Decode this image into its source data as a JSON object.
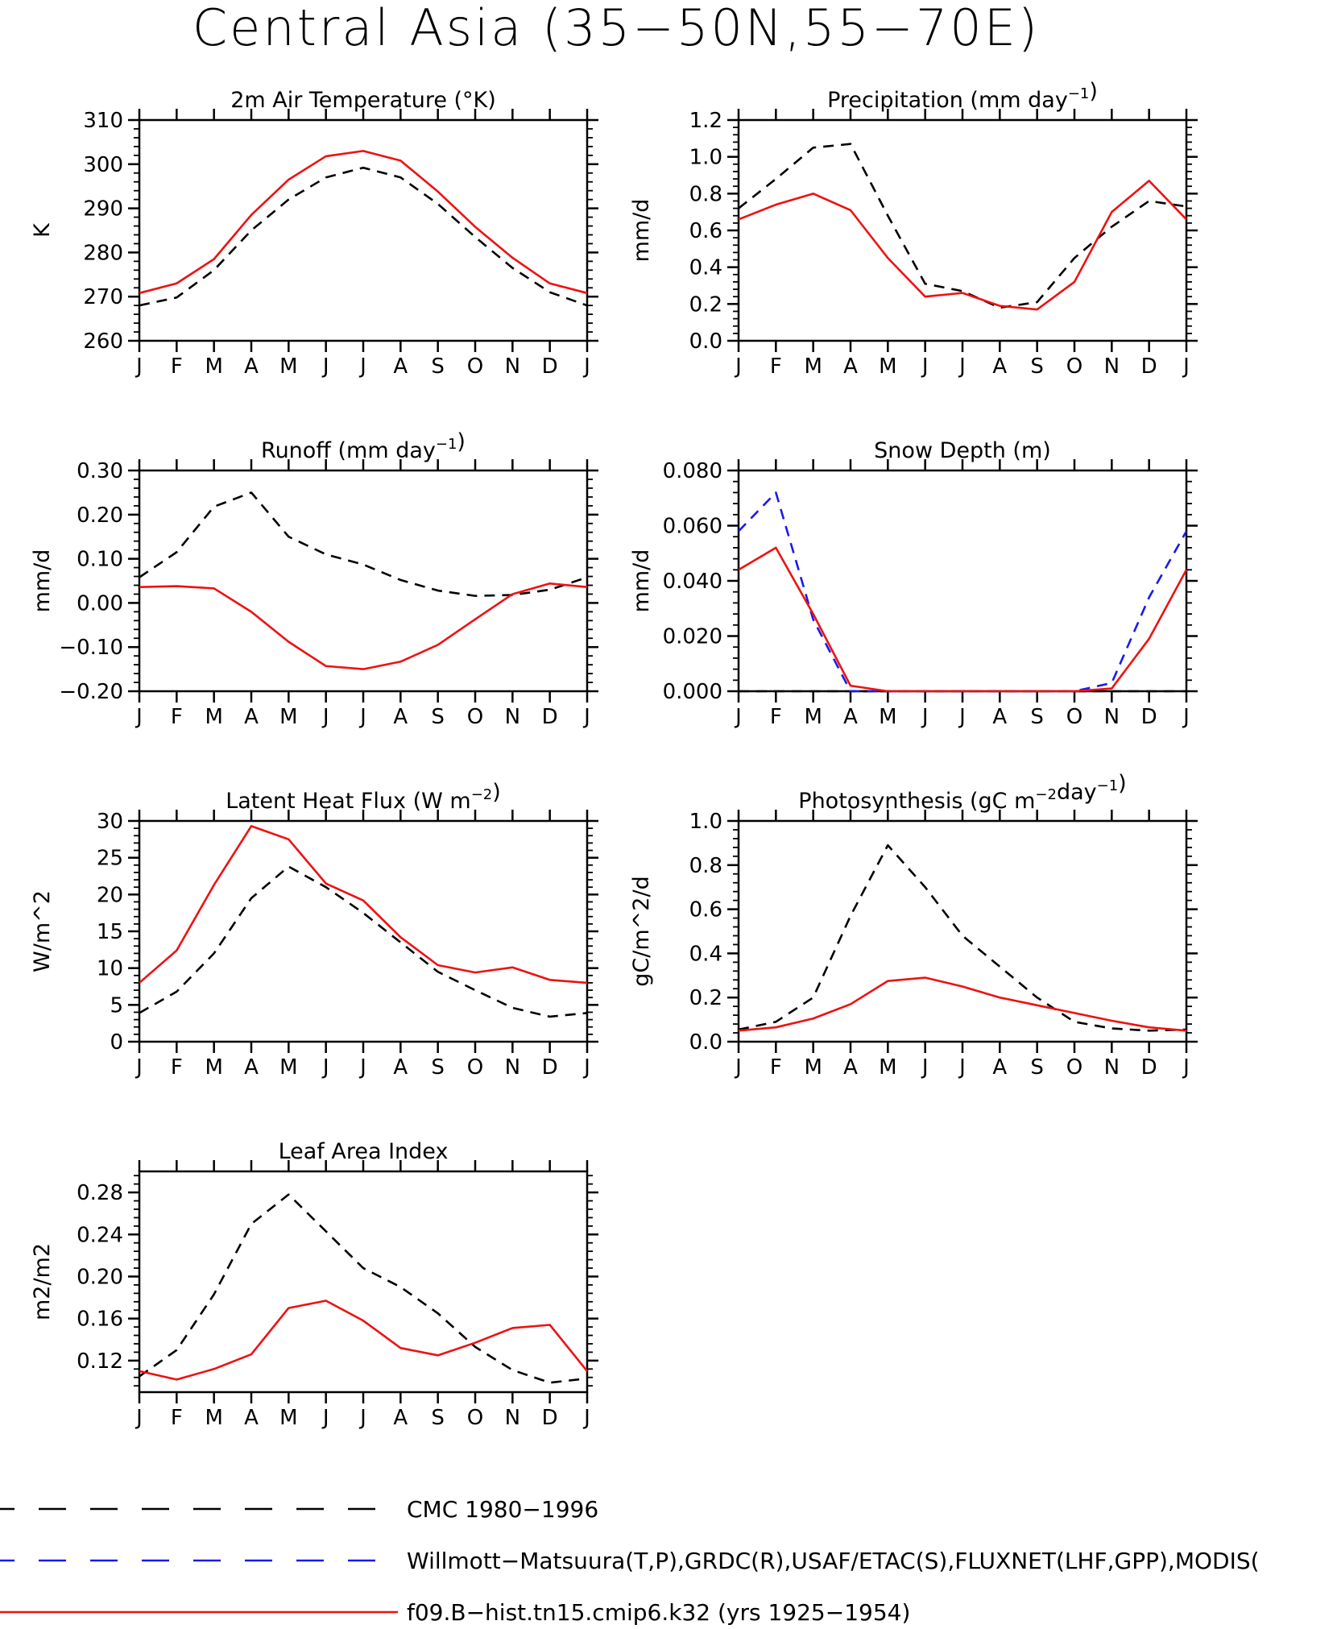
{
  "page_title": "Central Asia (35−50N,55−70E)",
  "chart_data": [
    {
      "id": "temperature",
      "type": "line",
      "title": "2m Air Temperature (°K)",
      "ylabel": "K",
      "x": [
        "J",
        "F",
        "M",
        "A",
        "M",
        "J",
        "J",
        "A",
        "S",
        "O",
        "N",
        "D",
        "J"
      ],
      "ylim": [
        260,
        310
      ],
      "yticks": [
        "260",
        "270",
        "280",
        "290",
        "300",
        "310"
      ],
      "series": [
        {
          "ref": "CMC 1980−1996",
          "values": [
            268.0,
            269.8,
            276.0,
            285.0,
            292.0,
            297.0,
            299.2,
            297.0,
            291.0,
            283.5,
            276.5,
            271.0,
            268.0
          ]
        },
        {
          "ref": "f09.B−hist.tn15.cmip6.k32 (yrs 1925−1954)",
          "values": [
            270.8,
            273.0,
            278.5,
            288.5,
            296.5,
            301.8,
            303.0,
            300.8,
            293.8,
            285.8,
            278.8,
            273.0,
            270.8
          ]
        }
      ]
    },
    {
      "id": "precipitation",
      "type": "line",
      "title": "Precipitation (mm day",
      "title_sup": "−1",
      "title_end": ")",
      "ylabel": "mm/d",
      "x": [
        "J",
        "F",
        "M",
        "A",
        "M",
        "J",
        "J",
        "A",
        "S",
        "O",
        "N",
        "D",
        "J"
      ],
      "ylim": [
        0,
        1.2
      ],
      "yticks": [
        "0.0",
        "0.2",
        "0.4",
        "0.6",
        "0.8",
        "1.0",
        "1.2"
      ],
      "series": [
        {
          "ref": "CMC 1980−1996",
          "values": [
            0.72,
            0.88,
            1.05,
            1.07,
            0.68,
            0.31,
            0.27,
            0.18,
            0.21,
            0.45,
            0.62,
            0.76,
            0.73
          ]
        },
        {
          "ref": "f09.B−hist.tn15.cmip6.k32 (yrs 1925−1954)",
          "values": [
            0.66,
            0.74,
            0.8,
            0.71,
            0.45,
            0.24,
            0.26,
            0.19,
            0.17,
            0.32,
            0.7,
            0.87,
            0.66
          ]
        }
      ]
    },
    {
      "id": "runoff",
      "type": "line",
      "title": "Runoff (mm day",
      "title_sup": "−1",
      "title_end": ")",
      "ylabel": "mm/d",
      "x": [
        "J",
        "F",
        "M",
        "A",
        "M",
        "J",
        "J",
        "A",
        "S",
        "O",
        "N",
        "D",
        "J"
      ],
      "ylim": [
        -0.2,
        0.3
      ],
      "yticks": [
        "−0.20",
        "−0.10",
        "0.00",
        "0.10",
        "0.20",
        "0.30"
      ],
      "series": [
        {
          "ref": "CMC 1980−1996",
          "values": [
            0.058,
            0.115,
            0.218,
            0.25,
            0.15,
            0.11,
            0.087,
            0.052,
            0.028,
            0.016,
            0.018,
            0.03,
            0.058
          ]
        },
        {
          "ref": "f09.B−hist.tn15.cmip6.k32 (yrs 1925−1954)",
          "values": [
            0.036,
            0.038,
            0.033,
            -0.02,
            -0.088,
            -0.143,
            -0.15,
            -0.133,
            -0.095,
            -0.037,
            0.02,
            0.044,
            0.036
          ]
        }
      ]
    },
    {
      "id": "snow-depth",
      "type": "line",
      "title": "Snow Depth (m)",
      "ylabel": "mm/d",
      "x": [
        "J",
        "F",
        "M",
        "A",
        "M",
        "J",
        "J",
        "A",
        "S",
        "O",
        "N",
        "D",
        "J"
      ],
      "ylim": [
        0,
        0.08
      ],
      "yticks": [
        "0.000",
        "0.020",
        "0.040",
        "0.060",
        "0.080"
      ],
      "series": [
        {
          "ref": "CMC 1980−1996",
          "values": [
            0,
            0,
            0,
            0,
            0,
            0,
            0,
            0,
            0,
            0,
            0,
            0,
            0
          ]
        },
        {
          "ref": "Willmott−Matsuura(T,P),GRDC(R),USAF/ETAC(S),FLUXNET(LHF,GPP),MODIS(",
          "values": [
            0.058,
            0.072,
            0.026,
            0.0,
            0.0,
            0.0,
            0.0,
            0.0,
            0.0,
            0.0,
            0.003,
            0.034,
            0.058
          ]
        },
        {
          "ref": "f09.B−hist.tn15.cmip6.k32 (yrs 1925−1954)",
          "values": [
            0.044,
            0.052,
            0.028,
            0.002,
            0.0,
            0.0,
            0.0,
            0.0,
            0.0,
            0.0,
            0.001,
            0.019,
            0.044
          ]
        }
      ]
    },
    {
      "id": "latent-heat",
      "type": "line",
      "title": "Latent Heat Flux (W m",
      "title_sup": "−2",
      "title_end": ")",
      "ylabel": "W/m^2",
      "x": [
        "J",
        "F",
        "M",
        "A",
        "M",
        "J",
        "J",
        "A",
        "S",
        "O",
        "N",
        "D",
        "J"
      ],
      "ylim": [
        0,
        30
      ],
      "yticks": [
        "0",
        "5",
        "10",
        "15",
        "20",
        "25",
        "30"
      ],
      "series": [
        {
          "ref": "CMC 1980−1996",
          "values": [
            3.9,
            6.8,
            12.0,
            19.5,
            23.8,
            21.0,
            17.5,
            13.5,
            9.5,
            7.0,
            4.6,
            3.4,
            3.9
          ]
        },
        {
          "ref": "f09.B−hist.tn15.cmip6.k32 (yrs 1925−1954)",
          "values": [
            8.0,
            12.4,
            21.3,
            29.3,
            27.5,
            21.5,
            19.2,
            14.2,
            10.4,
            9.4,
            10.1,
            8.4,
            8.0
          ]
        }
      ]
    },
    {
      "id": "photosynthesis",
      "type": "line",
      "title": "Photosynthesis (gC m",
      "title_sup": "−2",
      "title_mid": "day",
      "title_sup2": "−1",
      "title_end": ")",
      "ylabel": "gC/m^2/d",
      "x": [
        "J",
        "F",
        "M",
        "A",
        "M",
        "J",
        "J",
        "A",
        "S",
        "O",
        "N",
        "D",
        "J"
      ],
      "ylim": [
        0,
        1.0
      ],
      "yticks": [
        "0.0",
        "0.2",
        "0.4",
        "0.6",
        "0.8",
        "1.0"
      ],
      "series": [
        {
          "ref": "CMC 1980−1996",
          "values": [
            0.055,
            0.09,
            0.2,
            0.57,
            0.89,
            0.7,
            0.48,
            0.34,
            0.2,
            0.09,
            0.06,
            0.05,
            0.055
          ]
        },
        {
          "ref": "f09.B−hist.tn15.cmip6.k32 (yrs 1925−1954)",
          "values": [
            0.05,
            0.065,
            0.105,
            0.17,
            0.275,
            0.29,
            0.25,
            0.2,
            0.165,
            0.13,
            0.095,
            0.065,
            0.05
          ]
        }
      ]
    },
    {
      "id": "leaf-area",
      "type": "line",
      "title": "Leaf Area Index",
      "ylabel": "m2/m2",
      "x": [
        "J",
        "F",
        "M",
        "A",
        "M",
        "J",
        "J",
        "A",
        "S",
        "O",
        "N",
        "D",
        "J"
      ],
      "ylim": [
        0.09,
        0.3
      ],
      "yticks": [
        "0.12",
        "0.16",
        "0.20",
        "0.24",
        "0.28"
      ],
      "series": [
        {
          "ref": "CMC 1980−1996",
          "values": [
            0.105,
            0.13,
            0.183,
            0.25,
            0.278,
            0.243,
            0.208,
            0.19,
            0.165,
            0.133,
            0.111,
            0.099,
            0.103
          ]
        },
        {
          "ref": "f09.B−hist.tn15.cmip6.k32 (yrs 1925−1954)",
          "values": [
            0.11,
            0.102,
            0.112,
            0.126,
            0.17,
            0.177,
            0.158,
            0.132,
            0.125,
            0.137,
            0.151,
            0.154,
            0.11
          ]
        }
      ]
    }
  ],
  "legend": [
    {
      "label": "CMC 1980−1996",
      "color": "#000000",
      "dash": "long"
    },
    {
      "label": "Willmott−Matsuura(T,P),GRDC(R),USAF/ETAC(S),FLUXNET(LHF,GPP),MODIS(",
      "color": "#1a1aee",
      "dash": "long"
    },
    {
      "label": "f09.B−hist.tn15.cmip6.k32 (yrs 1925−1954)",
      "color": "#ee1111",
      "dash": "solid"
    }
  ],
  "colors": {
    "axis": "#000000",
    "obs_black": "#000000",
    "obs_blue": "#1a1aee",
    "model_red": "#ee1111"
  }
}
